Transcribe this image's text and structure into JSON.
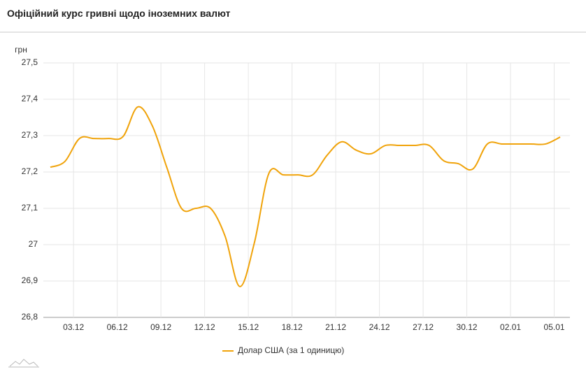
{
  "header": {
    "title": "Офіційний курс гривні щодо іноземних валют"
  },
  "chart_data": {
    "type": "line",
    "y_label": "грн",
    "categories": [
      null,
      null,
      "03.12",
      null,
      null,
      "06.12",
      null,
      null,
      "09.12",
      null,
      null,
      "12.12",
      null,
      null,
      "15.12",
      null,
      null,
      "18.12",
      null,
      null,
      "21.12",
      null,
      null,
      "24.12",
      null,
      null,
      "27.12",
      null,
      null,
      "30.12",
      null,
      null,
      "02.01",
      null,
      null,
      "05.01"
    ],
    "series": [
      {
        "name": "Долар США (за 1 одиницю)",
        "color": "#f0a30a",
        "values": [
          27.213,
          27.229,
          27.292,
          27.292,
          27.292,
          27.298,
          27.379,
          27.327,
          27.212,
          27.1,
          27.1,
          27.1,
          27.023,
          26.885,
          27.004,
          27.196,
          27.192,
          27.192,
          27.192,
          27.246,
          27.283,
          27.26,
          27.25,
          27.273,
          27.273,
          27.273,
          27.273,
          27.231,
          27.223,
          27.208,
          27.277,
          27.277,
          27.277,
          27.277,
          27.277,
          27.296
        ]
      }
    ],
    "ylim": [
      26.8,
      27.5
    ],
    "yticks": [
      {
        "value": 26.8,
        "label": "26,8"
      },
      {
        "value": 26.9,
        "label": "26,9"
      },
      27,
      {
        "value": 27.1,
        "label": "27,1"
      },
      {
        "value": 27.2,
        "label": "27,2"
      },
      {
        "value": 27.3,
        "label": "27,3"
      },
      {
        "value": 27.4,
        "label": "27,4"
      },
      {
        "value": 27.5,
        "label": "27,5"
      }
    ],
    "grid": true,
    "legend": "bottom"
  }
}
